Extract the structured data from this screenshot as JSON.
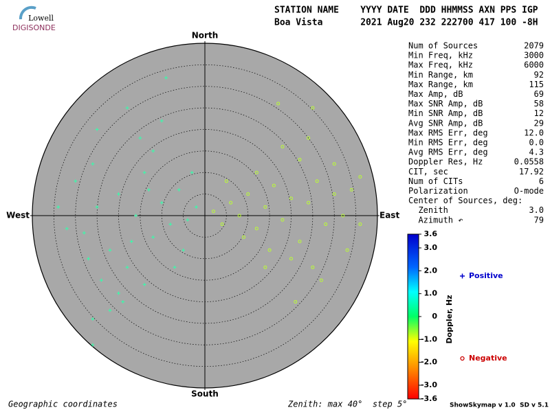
{
  "header": {
    "logo_top": "Lowell",
    "logo_bottom": "DIGISONDE",
    "columns": "STATION NAME    YYYY DATE  DDD HHMMSS AXN PPS IGP",
    "values": "Boa Vista       2021 Aug20 232 222700 417 100 -8H"
  },
  "stats": [
    {
      "label": "Num of Sources",
      "value": 2079
    },
    {
      "label": "Min Freq, kHz",
      "value": 3000
    },
    {
      "label": "Max Freq, kHz",
      "value": 6000
    },
    {
      "label": "Min Range, km",
      "value": 92
    },
    {
      "label": "Max Range, km",
      "value": 115
    },
    {
      "label": "Max Amp, dB",
      "value": 69
    },
    {
      "label": "Max SNR Amp, dB",
      "value": 58
    },
    {
      "label": "Min SNR Amp, dB",
      "value": 12
    },
    {
      "label": "Avg SNR Amp, dB",
      "value": 29
    },
    {
      "label": "Max RMS Err, deg",
      "value": "12.0"
    },
    {
      "label": "Min RMS Err, deg",
      "value": "0.0"
    },
    {
      "label": "Avg RMS Err, deg",
      "value": 4.3
    },
    {
      "label": "Doppler Res, Hz",
      "value": 0.0558
    },
    {
      "label": "CIT, sec",
      "value": 17.92
    },
    {
      "label": "Num of CITs",
      "value": 6
    },
    {
      "label": "Polarization",
      "value": "O-mode"
    },
    {
      "label": "Center of Sources, deg:"
    },
    {
      "label": "  Zenith",
      "value": "3.0"
    },
    {
      "label": "  Azimuth ↶",
      "value": 79
    }
  ],
  "footer": {
    "left": "Geographic coordinates",
    "middle": "Zenith: max 40°  step 5°",
    "right": "ShowSkymap v 1.0  SD v 5.1"
  },
  "chart_data": {
    "type": "scatter",
    "directions": {
      "north": "North",
      "south": "South",
      "east": "East",
      "west": "West"
    },
    "xlim": [
      -40,
      40
    ],
    "ylim": [
      -40,
      40
    ],
    "rticks": [
      5,
      10,
      15,
      20,
      25,
      30,
      35,
      40
    ],
    "colorbar": {
      "label": "Doppler, Hz",
      "lim": [
        -3.6,
        3.6
      ],
      "ticks": [
        3.6,
        {
          "value": 3,
          "label": "3.0"
        },
        {
          "value": 2,
          "label": "2.0"
        },
        {
          "value": 1,
          "label": "1.0"
        },
        0,
        {
          "value": -1,
          "label": "-1.0"
        },
        {
          "value": -2,
          "label": "-2.0"
        },
        {
          "value": -3,
          "label": "-3.0"
        },
        -3.6
      ]
    },
    "series": [
      {
        "name": "Positive",
        "color": "#33ffaa",
        "legend_color": "#0000cc",
        "x": [
          -30,
          -28,
          -25,
          -22,
          -20,
          -18,
          -16,
          -14,
          -12,
          -10,
          -8,
          -6,
          -4,
          -2,
          -24,
          -20,
          -26,
          -15,
          -10,
          -9,
          -18,
          -32,
          -34,
          -27,
          -22,
          -19,
          -14,
          -12,
          -5,
          -3,
          -25,
          -17,
          -13,
          -7,
          -26,
          -26
        ],
        "y": [
          8,
          -4,
          2,
          -8,
          5,
          -12,
          0,
          10,
          -5,
          3,
          -2,
          6,
          -1,
          2,
          -15,
          -18,
          12,
          18,
          22,
          32,
          25,
          -3,
          2,
          -10,
          -22,
          -20,
          -16,
          15,
          -8,
          10,
          20,
          -6,
          6,
          -12,
          -24,
          -30
        ]
      },
      {
        "name": "Negative",
        "color": "#bbff33",
        "legend_color": "#cc0000",
        "x": [
          2,
          4,
          6,
          8,
          10,
          12,
          14,
          16,
          18,
          20,
          22,
          24,
          26,
          28,
          30,
          32,
          34,
          36,
          15,
          20,
          25,
          22,
          18,
          24,
          12,
          9,
          5,
          27,
          21,
          14,
          30,
          36,
          25,
          17,
          33
        ],
        "y": [
          1,
          -2,
          3,
          0,
          5,
          -3,
          2,
          7,
          -1,
          4,
          -6,
          3,
          8,
          -2,
          5,
          0,
          6,
          9,
          -8,
          -10,
          -12,
          13,
          16,
          18,
          10,
          -5,
          8,
          -15,
          -20,
          -12,
          12,
          -2,
          25,
          26,
          -8
        ]
      }
    ]
  }
}
